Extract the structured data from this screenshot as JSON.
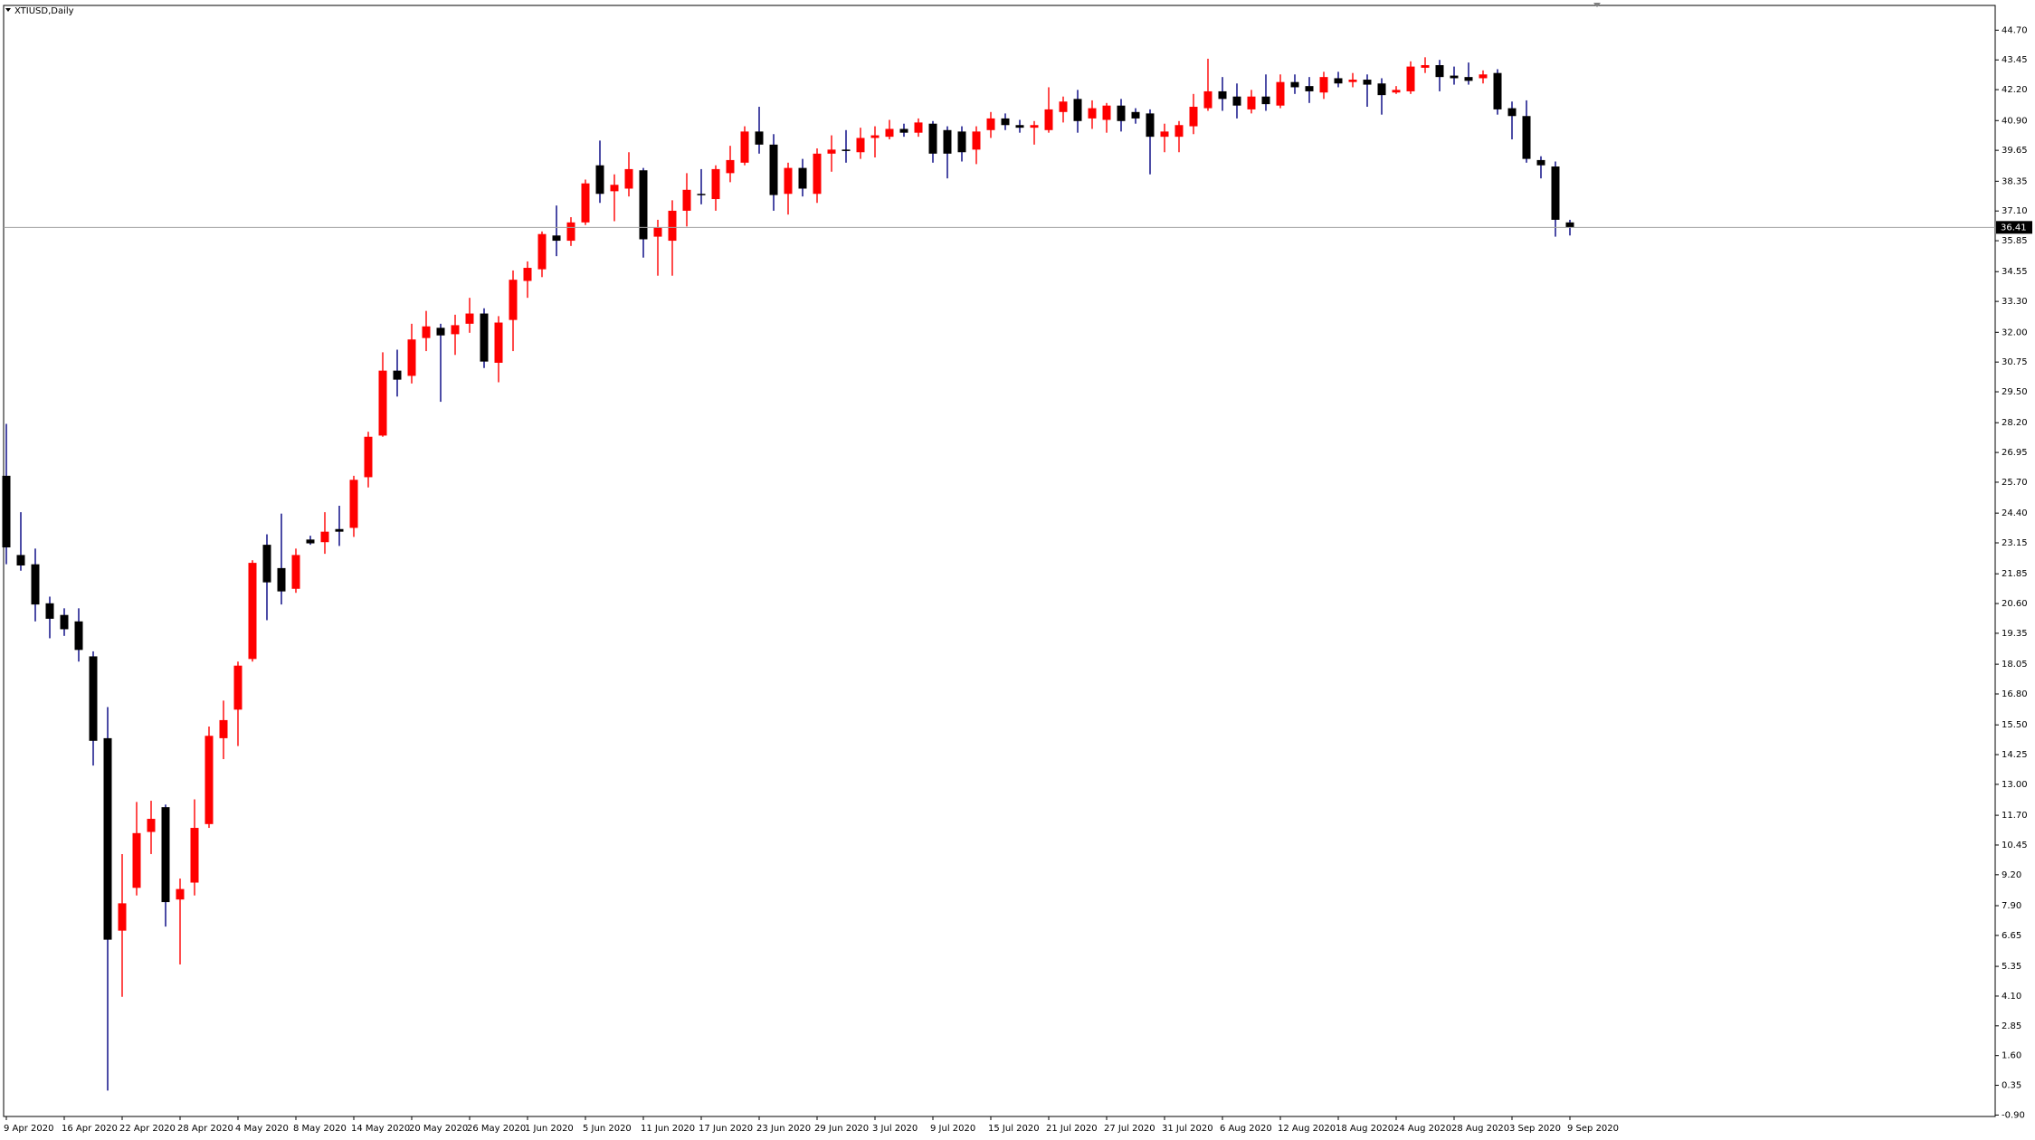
{
  "chart_data": {
    "type": "candlestick",
    "title": "XTIUSD,Daily",
    "categories": [
      "9 Apr 2020",
      null,
      null,
      null,
      "16 Apr 2020",
      null,
      null,
      null,
      "22 Apr 2020",
      null,
      null,
      null,
      "28 Apr 2020",
      null,
      null,
      null,
      "4 May 2020",
      null,
      null,
      null,
      "8 May 2020",
      null,
      null,
      null,
      "14 May 2020",
      null,
      null,
      null,
      "20 May 2020",
      null,
      null,
      null,
      "26 May 2020",
      null,
      null,
      null,
      "1 Jun 2020",
      null,
      null,
      null,
      "5 Jun 2020",
      null,
      null,
      null,
      "11 Jun 2020",
      null,
      null,
      null,
      "17 Jun 2020",
      null,
      null,
      null,
      "23 Jun 2020",
      null,
      null,
      null,
      "29 Jun 2020",
      null,
      null,
      null,
      "3 Jul 2020",
      null,
      null,
      null,
      "9 Jul 2020",
      null,
      null,
      null,
      "15 Jul 2020",
      null,
      null,
      null,
      "21 Jul 2020",
      null,
      null,
      null,
      "27 Jul 2020",
      null,
      null,
      null,
      "31 Jul 2020",
      null,
      null,
      null,
      "6 Aug 2020",
      null,
      null,
      null,
      "12 Aug 2020",
      null,
      null,
      null,
      "18 Aug 2020",
      null,
      null,
      null,
      "24 Aug 2020",
      null,
      null,
      null,
      "28 Aug 2020",
      null,
      null,
      null,
      "3 Sep 2020",
      null,
      null,
      null,
      "9 Sep 2020"
    ],
    "open": [
      25.97,
      22.64,
      22.25,
      20.61,
      20.12,
      19.85,
      18.38,
      14.94,
      6.85,
      8.65,
      11.0,
      12.04,
      8.16,
      8.87,
      11.33,
      14.94,
      16.14,
      18.27,
      23.07,
      22.09,
      21.22,
      23.29,
      23.18,
      23.73,
      23.78,
      25.91,
      27.66,
      30.39,
      30.17,
      31.76,
      32.19,
      31.92,
      32.36,
      32.79,
      30.72,
      32.52,
      34.16,
      34.65,
      36.07,
      35.85,
      36.62,
      39.02,
      37.93,
      38.04,
      38.81,
      36.02,
      35.85,
      37.11,
      37.82,
      37.6,
      38.69,
      39.13,
      40.44,
      39.89,
      37.82,
      38.91,
      37.82,
      39.51,
      39.68,
      39.57,
      40.17,
      40.22,
      40.55,
      40.39,
      40.77,
      40.5,
      40.44,
      39.68,
      40.5,
      40.99,
      40.71,
      40.6,
      40.5,
      41.26,
      41.81,
      40.99,
      40.93,
      41.53,
      41.26,
      41.2,
      40.22,
      40.22,
      40.66,
      41.42,
      42.13,
      41.91,
      41.37,
      41.91,
      41.53,
      42.52,
      42.35,
      42.08,
      42.68,
      42.52,
      42.62,
      42.46,
      42.08,
      42.13,
      43.12,
      43.23,
      42.79,
      42.73,
      42.68,
      42.9,
      41.42,
      41.09,
      39.24,
      38.97,
      36.62
    ],
    "high": [
      28.15,
      24.44,
      22.91,
      20.89,
      20.4,
      20.4,
      18.59,
      16.25,
      10.07,
      12.26,
      12.31,
      12.15,
      9.04,
      12.37,
      15.43,
      16.52,
      18.16,
      22.42,
      23.51,
      24.38,
      22.91,
      23.45,
      24.44,
      24.71,
      25.97,
      27.82,
      31.16,
      31.27,
      32.36,
      32.9,
      32.36,
      32.74,
      33.45,
      33.01,
      32.68,
      34.6,
      34.98,
      36.24,
      37.33,
      36.84,
      38.42,
      40.06,
      38.64,
      39.57,
      38.91,
      36.73,
      37.55,
      38.69,
      38.86,
      39.02,
      39.84,
      40.66,
      41.48,
      40.33,
      39.13,
      39.29,
      39.73,
      40.28,
      40.5,
      40.6,
      40.66,
      40.93,
      40.77,
      40.99,
      40.88,
      40.66,
      40.66,
      40.66,
      41.26,
      41.2,
      40.93,
      40.88,
      42.3,
      41.91,
      42.19,
      41.75,
      41.64,
      41.81,
      41.42,
      41.37,
      40.77,
      40.88,
      42.02,
      43.5,
      42.73,
      42.46,
      42.19,
      42.84,
      42.84,
      42.84,
      42.73,
      42.95,
      42.95,
      42.9,
      42.84,
      42.68,
      42.35,
      43.39,
      43.56,
      43.45,
      43.17,
      43.34,
      43.01,
      43.06,
      41.7,
      41.75,
      39.4,
      39.18,
      36.73
    ],
    "low": [
      22.25,
      21.98,
      19.85,
      19.14,
      19.24,
      18.16,
      13.79,
      0.13,
      4.07,
      8.33,
      10.07,
      7.02,
      5.43,
      8.33,
      11.17,
      14.06,
      14.61,
      18.16,
      19.9,
      20.56,
      21.05,
      23.07,
      22.69,
      23.02,
      23.4,
      25.48,
      27.61,
      29.3,
      29.85,
      31.21,
      29.08,
      31.05,
      31.98,
      30.5,
      29.9,
      31.21,
      33.45,
      34.32,
      35.2,
      35.63,
      36.51,
      37.44,
      36.67,
      37.71,
      35.14,
      34.38,
      34.38,
      36.45,
      37.38,
      37.11,
      38.31,
      39.02,
      39.51,
      37.11,
      36.95,
      37.71,
      37.44,
      38.75,
      39.13,
      39.29,
      39.35,
      40.11,
      40.22,
      40.22,
      39.13,
      38.47,
      39.18,
      39.07,
      40.17,
      40.5,
      40.39,
      39.89,
      40.39,
      40.82,
      40.39,
      40.55,
      40.39,
      40.44,
      40.77,
      38.64,
      39.57,
      39.57,
      40.33,
      41.31,
      41.31,
      40.99,
      41.2,
      41.31,
      41.42,
      42.02,
      41.64,
      41.81,
      42.3,
      42.3,
      41.48,
      41.15,
      42.02,
      42.02,
      42.9,
      42.13,
      42.41,
      42.41,
      42.46,
      41.15,
      40.11,
      39.13,
      38.47,
      36.02,
      36.07
    ],
    "close": [
      22.96,
      22.2,
      20.56,
      19.96,
      19.52,
      18.65,
      14.83,
      6.47,
      8.0,
      10.95,
      11.55,
      8.05,
      8.6,
      11.17,
      15.04,
      15.7,
      17.99,
      22.31,
      21.49,
      21.11,
      22.64,
      23.13,
      23.62,
      23.62,
      25.8,
      27.61,
      30.39,
      30.01,
      31.7,
      32.25,
      31.87,
      32.3,
      32.79,
      30.77,
      32.41,
      34.21,
      34.71,
      36.13,
      35.85,
      36.62,
      38.26,
      37.82,
      38.2,
      38.86,
      35.91,
      36.4,
      37.11,
      37.99,
      37.77,
      38.86,
      39.24,
      40.44,
      39.89,
      37.77,
      38.91,
      38.04,
      39.51,
      39.68,
      39.62,
      40.17,
      40.28,
      40.55,
      40.39,
      40.82,
      39.51,
      39.51,
      39.57,
      40.44,
      40.99,
      40.71,
      40.6,
      40.71,
      41.37,
      41.7,
      40.88,
      41.42,
      41.53,
      40.88,
      40.99,
      40.22,
      40.44,
      40.71,
      41.48,
      42.13,
      41.81,
      41.53,
      41.91,
      41.59,
      42.52,
      42.3,
      42.13,
      42.73,
      42.46,
      42.62,
      42.41,
      41.97,
      42.19,
      43.17,
      43.23,
      42.73,
      42.68,
      42.57,
      42.84,
      41.37,
      41.09,
      39.29,
      39.02,
      36.73,
      36.41
    ],
    "up_color": "#ff0000",
    "down_color": "#000000",
    "down_wick_color": "#000080",
    "last_price": 36.41,
    "ylim": [
      -0.96,
      45.74
    ],
    "yticks": [
      {
        "value": 44.7,
        "label": "44.70"
      },
      {
        "value": 43.45,
        "label": "43.45"
      },
      {
        "value": 42.2,
        "label": "42.20"
      },
      {
        "value": 40.9,
        "label": "40.90"
      },
      {
        "value": 39.65,
        "label": "39.65"
      },
      {
        "value": 38.35,
        "label": "38.35"
      },
      {
        "value": 37.1,
        "label": "37.10"
      },
      {
        "value": 35.85,
        "label": "35.85"
      },
      {
        "value": 34.55,
        "label": "34.55"
      },
      {
        "value": 33.3,
        "label": "33.30"
      },
      {
        "value": 32,
        "label": "32.00"
      },
      {
        "value": 30.75,
        "label": "30.75"
      },
      {
        "value": 29.5,
        "label": "29.50"
      },
      {
        "value": 28.2,
        "label": "28.20"
      },
      {
        "value": 26.95,
        "label": "26.95"
      },
      {
        "value": 25.7,
        "label": "25.70"
      },
      {
        "value": 24.4,
        "label": "24.40"
      },
      {
        "value": 23.15,
        "label": "23.15"
      },
      {
        "value": 21.85,
        "label": "21.85"
      },
      {
        "value": 20.6,
        "label": "20.60"
      },
      {
        "value": 19.35,
        "label": "19.35"
      },
      {
        "value": 18.05,
        "label": "18.05"
      },
      {
        "value": 16.8,
        "label": "16.80"
      },
      {
        "value": 15.5,
        "label": "15.50"
      },
      {
        "value": 14.25,
        "label": "14.25"
      },
      {
        "value": 13,
        "label": "13.00"
      },
      {
        "value": 11.7,
        "label": "11.70"
      },
      {
        "value": 10.45,
        "label": "10.45"
      },
      {
        "value": 9.2,
        "label": "9.20"
      },
      {
        "value": 7.9,
        "label": "7.90"
      },
      {
        "value": 6.65,
        "label": "6.65"
      },
      {
        "value": 5.35,
        "label": "5.35"
      },
      {
        "value": 4.1,
        "label": "4.10"
      },
      {
        "value": 2.85,
        "label": "2.85"
      },
      {
        "value": 1.6,
        "label": "1.60"
      },
      {
        "value": 0.35,
        "label": "0.35"
      },
      {
        "value": -0.9,
        "label": "-0.90"
      }
    ],
    "grid": false
  }
}
